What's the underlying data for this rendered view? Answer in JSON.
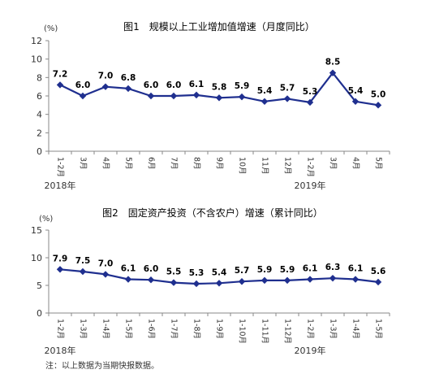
{
  "note": "注：以上数据为当期快报数据。",
  "colors": {
    "line": "#1f2f8f",
    "axis": "#888888",
    "text": "#333333"
  },
  "chart_data": [
    {
      "type": "line",
      "title": "图1　规模以上工业增加值增速（月度同比）",
      "unit": "(%)",
      "categories": [
        "1-2月",
        "3月",
        "4月",
        "5月",
        "6月",
        "7月",
        "8月",
        "9月",
        "10月",
        "11月",
        "12月",
        "1-2月",
        "3月",
        "4月",
        "5月"
      ],
      "year_labels": [
        {
          "text": "2018年",
          "index": 0
        },
        {
          "text": "2019年",
          "index": 11
        }
      ],
      "values": [
        7.2,
        6.0,
        7.0,
        6.8,
        6.0,
        6.0,
        6.1,
        5.8,
        5.9,
        5.4,
        5.7,
        5.3,
        8.5,
        5.4,
        5.0
      ],
      "ylim": [
        0,
        12
      ],
      "yticks": [
        0,
        2,
        4,
        6,
        8,
        10,
        12
      ],
      "grid": false
    },
    {
      "type": "line",
      "title": "图2　固定资产投资（不含农户）增速（累计同比）",
      "unit": "(%)",
      "categories": [
        "1-2月",
        "1-3月",
        "1-4月",
        "1-5月",
        "1-6月",
        "1-7月",
        "1-8月",
        "1-9月",
        "1-10月",
        "1-11月",
        "1-12月",
        "1-2月",
        "1-3月",
        "1-4月",
        "1-5月"
      ],
      "year_labels": [
        {
          "text": "2018年",
          "index": 0
        },
        {
          "text": "2019年",
          "index": 11
        }
      ],
      "values": [
        7.9,
        7.5,
        7.0,
        6.1,
        6.0,
        5.5,
        5.3,
        5.4,
        5.7,
        5.9,
        5.9,
        6.1,
        6.3,
        6.1,
        5.6
      ],
      "ylim": [
        0,
        15
      ],
      "yticks": [
        0,
        5,
        10,
        15
      ],
      "grid": false
    }
  ]
}
